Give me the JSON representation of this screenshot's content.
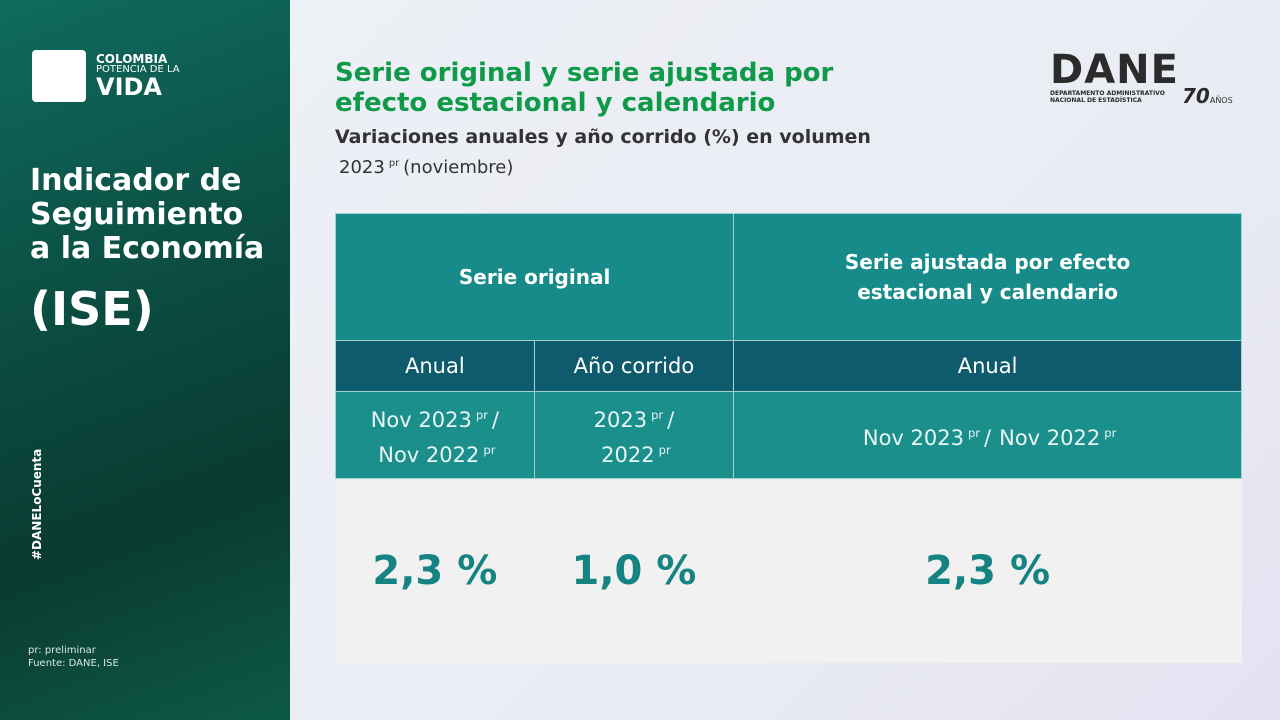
{
  "sidebar": {
    "brand": [
      "COLOMBIA",
      "POTENCIA DE LA",
      "VIDA"
    ],
    "title": [
      "Indicador de",
      "Seguimiento",
      "a la Economía"
    ],
    "acronym": "(ISE)",
    "hashtag": "#DANELoCuenta",
    "notes": [
      "pr: preliminar",
      "Fuente: DANE, ISE"
    ]
  },
  "header": {
    "title": [
      "Serie original y serie ajustada por",
      "efecto estacional y calendario"
    ],
    "subtitle": "Variaciones anuales y año corrido (%) en volumen",
    "period": [
      {
        "t": "2023"
      },
      {
        "sup": "pr"
      },
      {
        "t": "(noviembre)"
      }
    ]
  },
  "logo": {
    "name": "DANE",
    "lines": [
      "DEPARTAMENTO ADMINISTRATIVO",
      "NACIONAL DE ESTADÍSTICA"
    ],
    "anniversary": {
      "number": "70",
      "label": "AÑOS"
    }
  },
  "table": {
    "groups": [
      "Serie original",
      "Serie ajustada por efecto estacional y calendario"
    ],
    "columns": [
      "Anual",
      "Año corrido",
      "Anual"
    ],
    "periods": [
      [
        [
          {
            "t": "Nov 2023"
          },
          {
            "sup": "pr"
          },
          {
            "t": "/"
          }
        ],
        [
          {
            "t": "Nov 2022"
          },
          {
            "sup": "pr"
          }
        ]
      ],
      [
        [
          {
            "t": "2023"
          },
          {
            "sup": "pr"
          },
          {
            "t": "/"
          }
        ],
        [
          {
            "t": "2022"
          },
          {
            "sup": "pr"
          }
        ]
      ],
      [
        [
          {
            "t": "Nov 2023"
          },
          {
            "sup": "pr"
          },
          {
            "t": "/"
          },
          {
            "t": "Nov 2022"
          },
          {
            "sup": "pr"
          }
        ]
      ]
    ],
    "values": [
      "2,3 %",
      "1,0 %",
      "2,3 %"
    ]
  }
}
